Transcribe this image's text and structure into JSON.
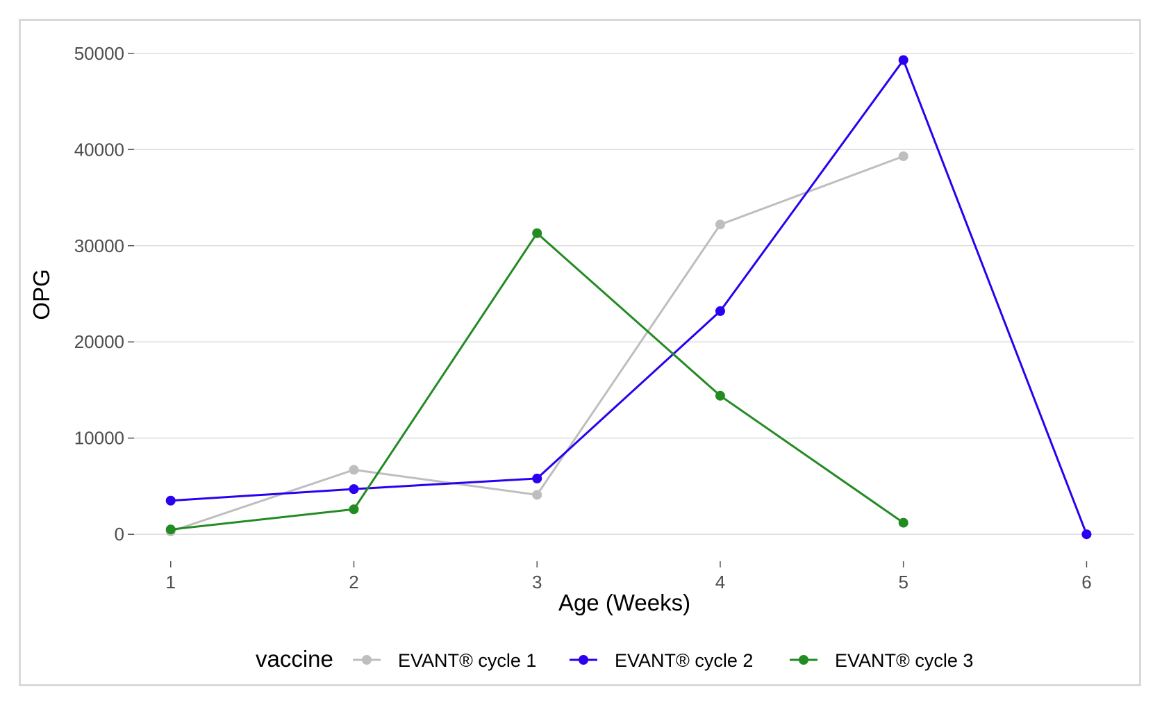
{
  "chart_data": {
    "type": "line",
    "xlabel": "Age (Weeks)",
    "ylabel": "OPG",
    "x_ticks": [
      1,
      2,
      3,
      4,
      5,
      6
    ],
    "y_ticks": [
      0,
      10000,
      20000,
      30000,
      40000,
      50000
    ],
    "xlim": [
      0.8,
      6.26
    ],
    "ylim": [
      -2800,
      52800
    ],
    "grid": "horizontal major",
    "legend": {
      "title": "vaccine",
      "position": "bottom"
    },
    "series": [
      {
        "name": "EVANT® cycle 1",
        "color": "#bebebe",
        "x": [
          1,
          2,
          3,
          4,
          5
        ],
        "y": [
          300,
          6700,
          4100,
          32200,
          39300
        ]
      },
      {
        "name": "EVANT® cycle 2",
        "color": "#2b00f0",
        "x": [
          1,
          2,
          3,
          4,
          5,
          6
        ],
        "y": [
          3500,
          4700,
          5800,
          23200,
          49300,
          0
        ]
      },
      {
        "name": "EVANT® cycle 3",
        "color": "#228b22",
        "x": [
          1,
          2,
          3,
          4,
          5
        ],
        "y": [
          500,
          2600,
          31300,
          14400,
          1200
        ]
      }
    ]
  }
}
